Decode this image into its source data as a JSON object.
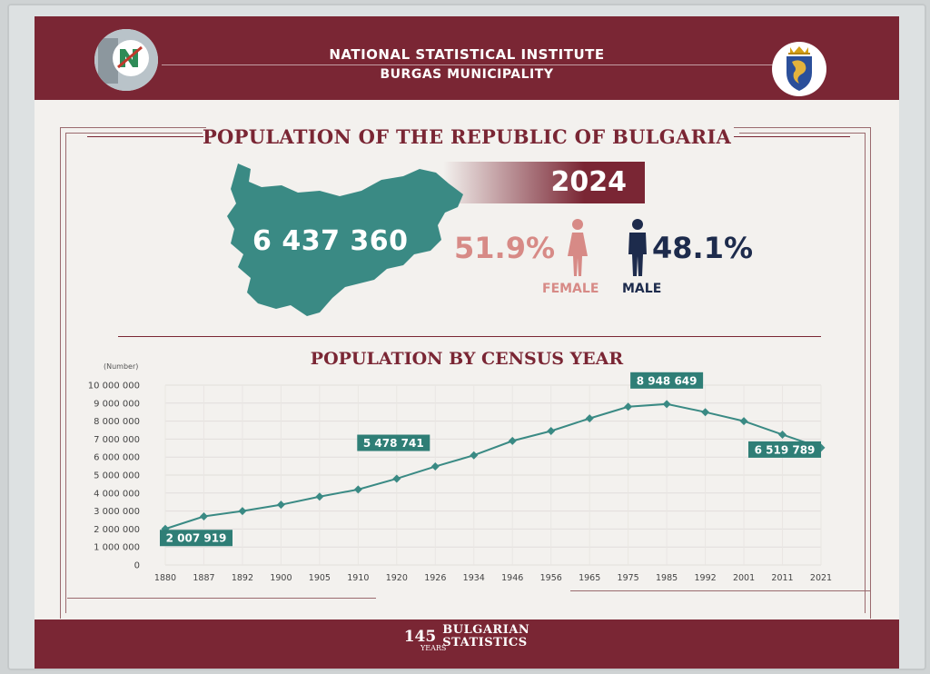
{
  "header": {
    "line1": "NATIONAL STATISTICAL INSTITUTE",
    "line2": "BURGAS MUNICIPALITY",
    "logo_left_icon": "nsi-logo-icon",
    "logo_right_icon": "burgas-coat-of-arms-icon"
  },
  "summary": {
    "title": "POPULATION OF THE REPUBLIC OF BULGARIA",
    "year": "2024",
    "total": "6 437 360",
    "female_pct": "51.9%",
    "male_pct": "48.1%",
    "female_label": "FEMALE",
    "male_label": "MALE",
    "female_icon": "female-person-icon",
    "male_icon": "male-person-icon",
    "map_icon": "bulgaria-map-icon"
  },
  "colors": {
    "brand": "#7a2634",
    "teal": "#3a8a84",
    "female": "#d78a86",
    "male": "#1d2b4c"
  },
  "footer": {
    "number": "145",
    "years": "YEARS",
    "line1": "BULGARIAN",
    "line2": "STATISTICS"
  },
  "chart_data": {
    "type": "line",
    "title": "POPULATION BY CENSUS YEAR",
    "ylabel": "(Number)",
    "xlabel": "",
    "ylim": [
      0,
      10000000
    ],
    "yticks": [
      {
        "v": 0,
        "label": "0"
      },
      {
        "v": 1000000,
        "label": "1 000 000"
      },
      {
        "v": 2000000,
        "label": "2 000 000"
      },
      {
        "v": 3000000,
        "label": "3 000 000"
      },
      {
        "v": 4000000,
        "label": "4 000 000"
      },
      {
        "v": 5000000,
        "label": "5 000 000"
      },
      {
        "v": 6000000,
        "label": "6 000 000"
      },
      {
        "v": 7000000,
        "label": "7 000 000"
      },
      {
        "v": 8000000,
        "label": "8 000 000"
      },
      {
        "v": 9000000,
        "label": "9 000 000"
      },
      {
        "v": 10000000,
        "label": "10 000 000"
      }
    ],
    "grid": true,
    "categories": [
      "1880",
      "1887",
      "1892",
      "1900",
      "1905",
      "1910",
      "1920",
      "1926",
      "1934",
      "1946",
      "1956",
      "1965",
      "1975",
      "1985",
      "1992",
      "2001",
      "2011",
      "2021"
    ],
    "values": [
      2007919,
      2700000,
      3000000,
      3350000,
      3800000,
      4200000,
      4800000,
      5478741,
      6100000,
      6900000,
      7450000,
      8150000,
      8800000,
      8948649,
      8500000,
      8000000,
      7250000,
      6519789
    ],
    "labels": [
      {
        "index": 0,
        "text": "2 007 919"
      },
      {
        "index": 7,
        "text": "5 478 741"
      },
      {
        "index": 13,
        "text": "8 948 649"
      },
      {
        "index": 17,
        "text": "6 519 789"
      }
    ]
  }
}
